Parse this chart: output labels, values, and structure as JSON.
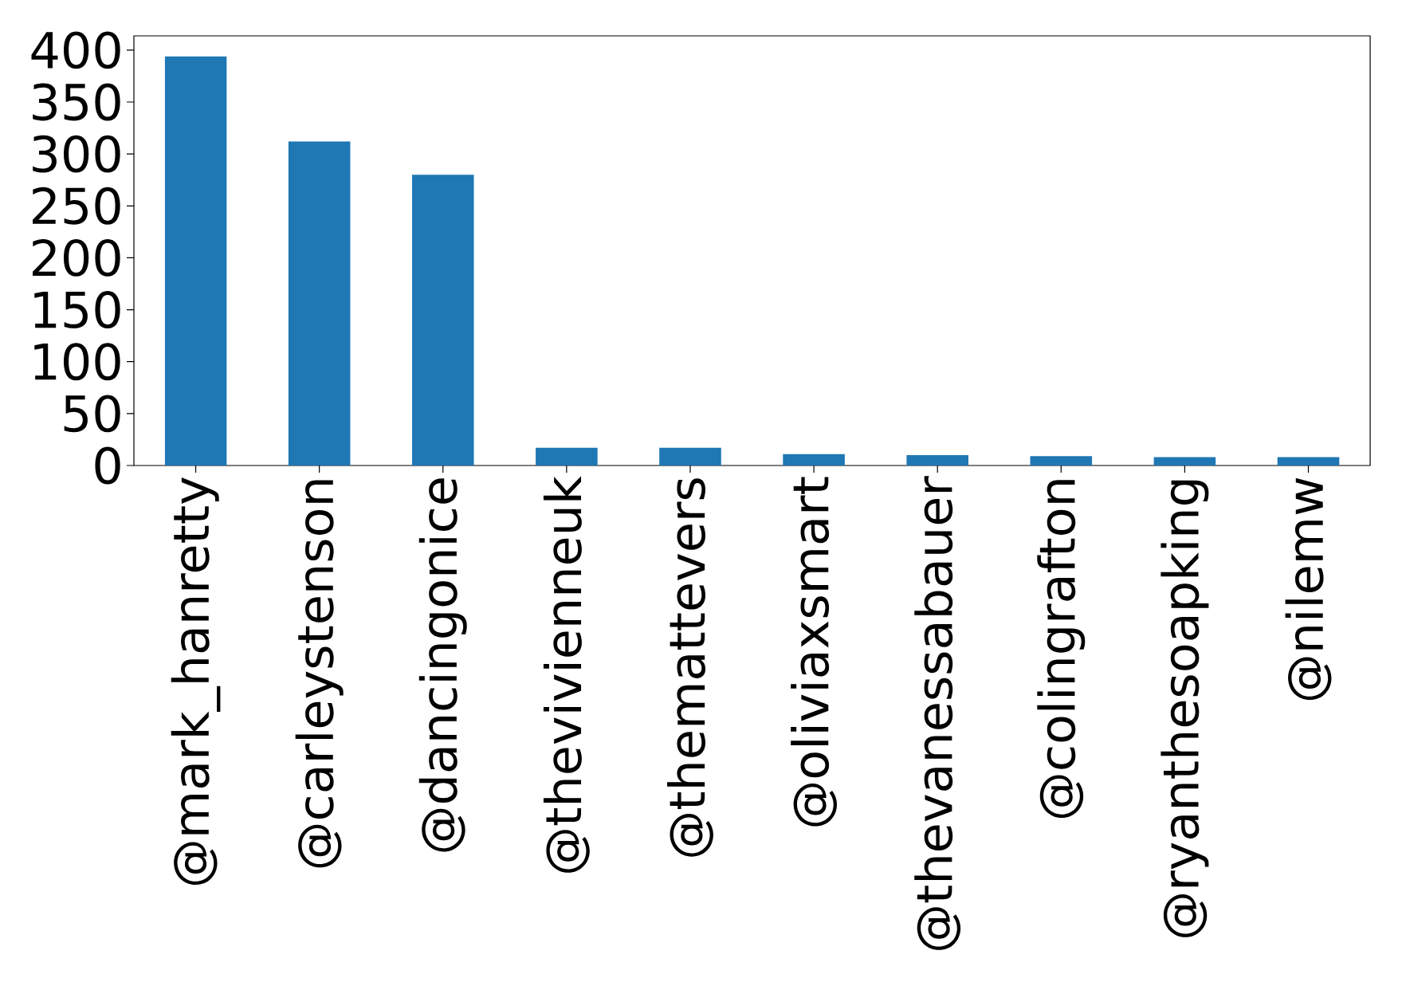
{
  "chart_data": {
    "type": "bar",
    "categories": [
      "@mark_hanretty",
      "@carleystenson",
      "@dancingonice",
      "@thevivienneuk",
      "@themattevers",
      "@oliviaxsmart",
      "@thevanessabauer",
      "@colingrafton",
      "@ryanthesoapking",
      "@nilemw"
    ],
    "values": [
      394,
      312,
      280,
      17,
      17,
      11,
      10,
      9,
      8,
      8
    ],
    "color": "#1f77b4",
    "ylim": [
      0,
      413.7
    ],
    "yticks": [
      0,
      50,
      100,
      150,
      200,
      250,
      300,
      350,
      400
    ]
  }
}
